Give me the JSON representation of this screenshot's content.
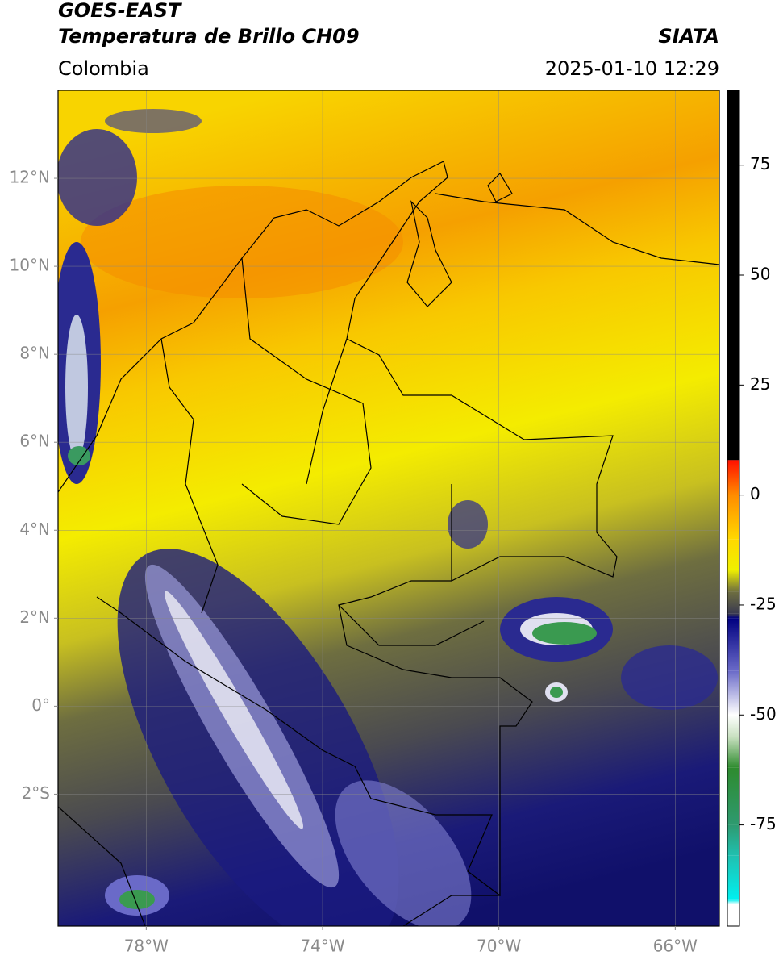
{
  "header": {
    "title": "GOES-EAST",
    "subtitle": "Temperatura de Brillo CH09",
    "source": "SIATA",
    "region": "Colombia",
    "datetime": "2025-01-10 12:29"
  },
  "map": {
    "xlim": [
      -80,
      -65
    ],
    "ylim": [
      -5,
      14
    ],
    "xticks": [
      {
        "value": -78,
        "label": "78°W"
      },
      {
        "value": -74,
        "label": "74°W"
      },
      {
        "value": -70,
        "label": "70°W"
      },
      {
        "value": -66,
        "label": "66°W"
      }
    ],
    "yticks": [
      {
        "value": 12,
        "label": "12°N"
      },
      {
        "value": 10,
        "label": "10°N"
      },
      {
        "value": 8,
        "label": "8°N"
      },
      {
        "value": 6,
        "label": "6°N"
      },
      {
        "value": 4,
        "label": "4°N"
      },
      {
        "value": 2,
        "label": "2°N"
      },
      {
        "value": 0,
        "label": "0°"
      },
      {
        "value": -2,
        "label": "2°S"
      }
    ],
    "grid": true
  },
  "colorbar": {
    "lim": [
      -98,
      92
    ],
    "ticks": [
      75,
      50,
      25,
      0,
      -25,
      -50,
      -75
    ],
    "stops": [
      {
        "value": 92,
        "color": "#000000"
      },
      {
        "value": 8,
        "color": "#000000"
      },
      {
        "value": 7.9,
        "color": "#ff1000"
      },
      {
        "value": 0,
        "color": "#ff8c00"
      },
      {
        "value": -10,
        "color": "#ffd800"
      },
      {
        "value": -17,
        "color": "#f0f000"
      },
      {
        "value": -22,
        "color": "#6e6e40"
      },
      {
        "value": -27,
        "color": "#3a3a50"
      },
      {
        "value": -28,
        "color": "#000080"
      },
      {
        "value": -40,
        "color": "#6a6ac8"
      },
      {
        "value": -50,
        "color": "#ffffff"
      },
      {
        "value": -55,
        "color": "#c8e0c0"
      },
      {
        "value": -62,
        "color": "#2e8b2e"
      },
      {
        "value": -75,
        "color": "#2e9a70"
      },
      {
        "value": -82,
        "color": "#20c0b0"
      },
      {
        "value": -92,
        "color": "#00f0f0"
      },
      {
        "value": -93,
        "color": "#ffffff"
      },
      {
        "value": -98,
        "color": "#ffffff"
      }
    ]
  }
}
